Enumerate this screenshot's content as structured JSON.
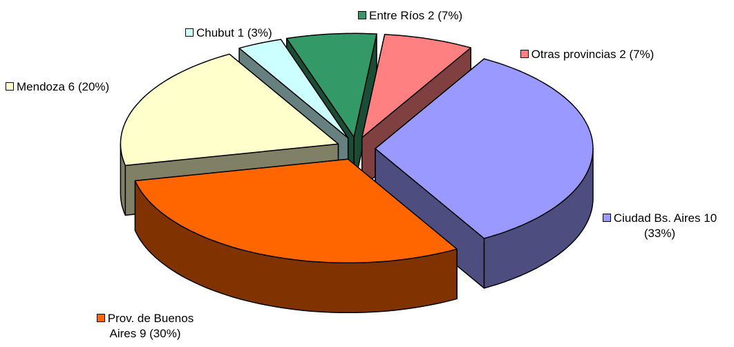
{
  "chart_data": {
    "type": "pie3d",
    "categories": [
      "Ciudad Bs. Aires",
      "Prov. de Buenos Aires",
      "Mendoza",
      "Chubut",
      "Entre Ríos",
      "Otras provincias"
    ],
    "values": [
      10,
      9,
      6,
      1,
      2,
      2
    ],
    "value_labels": [
      "10 (33%)",
      "9 (30%)",
      "6 (20%)",
      "1 (3%)",
      "2 (7%)",
      "2 (7%)"
    ],
    "colors": [
      "#9999ff",
      "#ff6600",
      "#ffffcc",
      "#ccffff",
      "#339966",
      "#ff8080"
    ]
  }
}
